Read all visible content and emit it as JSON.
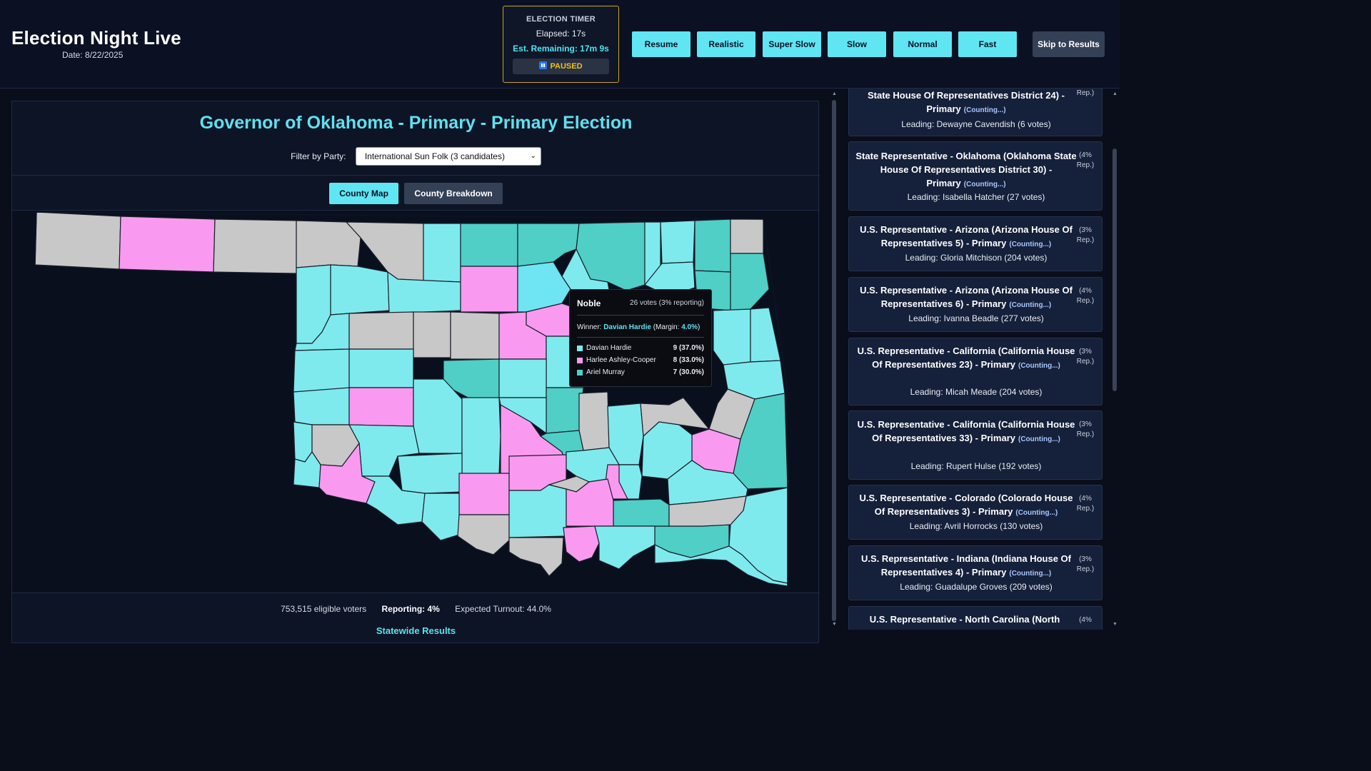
{
  "header": {
    "title": "Election Night Live",
    "date": "Date: 8/22/2025"
  },
  "timer": {
    "title": "ELECTION TIMER",
    "elapsed": "Elapsed: 17s",
    "remaining": "Est. Remaining: 17m 9s",
    "status": "PAUSED"
  },
  "speed_buttons": [
    "Resume",
    "Realistic",
    "Super Slow",
    "Slow",
    "Normal",
    "Fast"
  ],
  "skip_button": "Skip to Results",
  "race": {
    "title": "Governor of Oklahoma - Primary - Primary Election",
    "filter_label": "Filter by Party:",
    "filter_value": "International Sun Folk (3 candidates)",
    "tab_map": "County Map",
    "tab_breakdown": "County Breakdown"
  },
  "colors": {
    "hardie": "#7eeaee",
    "ashley_cooper": "#f99af0",
    "murray": "#4fcfc6",
    "uncounted": "#c8c8c8",
    "hover": "#6fe4f2",
    "accent": "#5ee1ee"
  },
  "tooltip": {
    "county": "Noble",
    "votes": "26 votes (3% reporting)",
    "winner_label": "Winner:",
    "winner_name": "Davian Hardie",
    "margin_label": "(Margin:",
    "margin_value": "4.0%",
    "margin_close": ")",
    "candidates": [
      {
        "name": "Davian Hardie",
        "value": "9 (37.0%)",
        "color": "#7eeaee"
      },
      {
        "name": "Harlee Ashley-Cooper",
        "value": "8 (33.0%)",
        "color": "#f99af0"
      },
      {
        "name": "Ariel Murray",
        "value": "7 (30.0%)",
        "color": "#4fcfc6"
      }
    ]
  },
  "stats": {
    "eligible": "753,515 eligible voters",
    "reporting": "Reporting: 4%",
    "turnout": "Expected Turnout: 44.0%"
  },
  "statewide_heading": "Statewide Results",
  "sidebar": [
    {
      "title": "State House Of Representatives District 24) - Primary",
      "counting": "(Counting...)",
      "pct": "Rep.)",
      "leading": "Leading: Dewayne Cavendish (6 votes)"
    },
    {
      "title": "State Representative - Oklahoma (Oklahoma State House Of Representatives District 30) - Primary",
      "counting": "(Counting...)",
      "pct": "(4% Rep.)",
      "leading": "Leading: Isabella Hatcher (27 votes)"
    },
    {
      "title": "U.S. Representative - Arizona (Arizona House Of Representatives 5) - Primary",
      "counting": "(Counting...)",
      "pct": "(3% Rep.)",
      "leading": "Leading: Gloria Mitchison (204 votes)"
    },
    {
      "title": "U.S. Representative - Arizona (Arizona House Of Representatives 6) - Primary",
      "counting": "(Counting...)",
      "pct": "(4% Rep.)",
      "leading": "Leading: Ivanna Beadle (277 votes)"
    },
    {
      "title": "U.S. Representative - California (California House Of Representatives 23) - Primary",
      "counting": "(Counting...)",
      "pct": "(3% Rep.)",
      "leading": "Leading: Micah Meade (204 votes)"
    },
    {
      "title": "U.S. Representative - California (California House Of Representatives 33) - Primary",
      "counting": "(Counting...)",
      "pct": "(3% Rep.)",
      "leading": "Leading: Rupert Hulse (192 votes)"
    },
    {
      "title": "U.S. Representative - Colorado (Colorado House Of Representatives 3) - Primary",
      "counting": "(Counting...)",
      "pct": "(4% Rep.)",
      "leading": "Leading: Avril Horrocks (130 votes)"
    },
    {
      "title": "U.S. Representative - Indiana (Indiana House Of Representatives 4) - Primary",
      "counting": "(Counting...)",
      "pct": "(3% Rep.)",
      "leading": "Leading: Guadalupe Groves (209 votes)"
    },
    {
      "title": "U.S. Representative - North Carolina (North",
      "counting": "",
      "pct": "(4%",
      "leading": ""
    }
  ]
}
